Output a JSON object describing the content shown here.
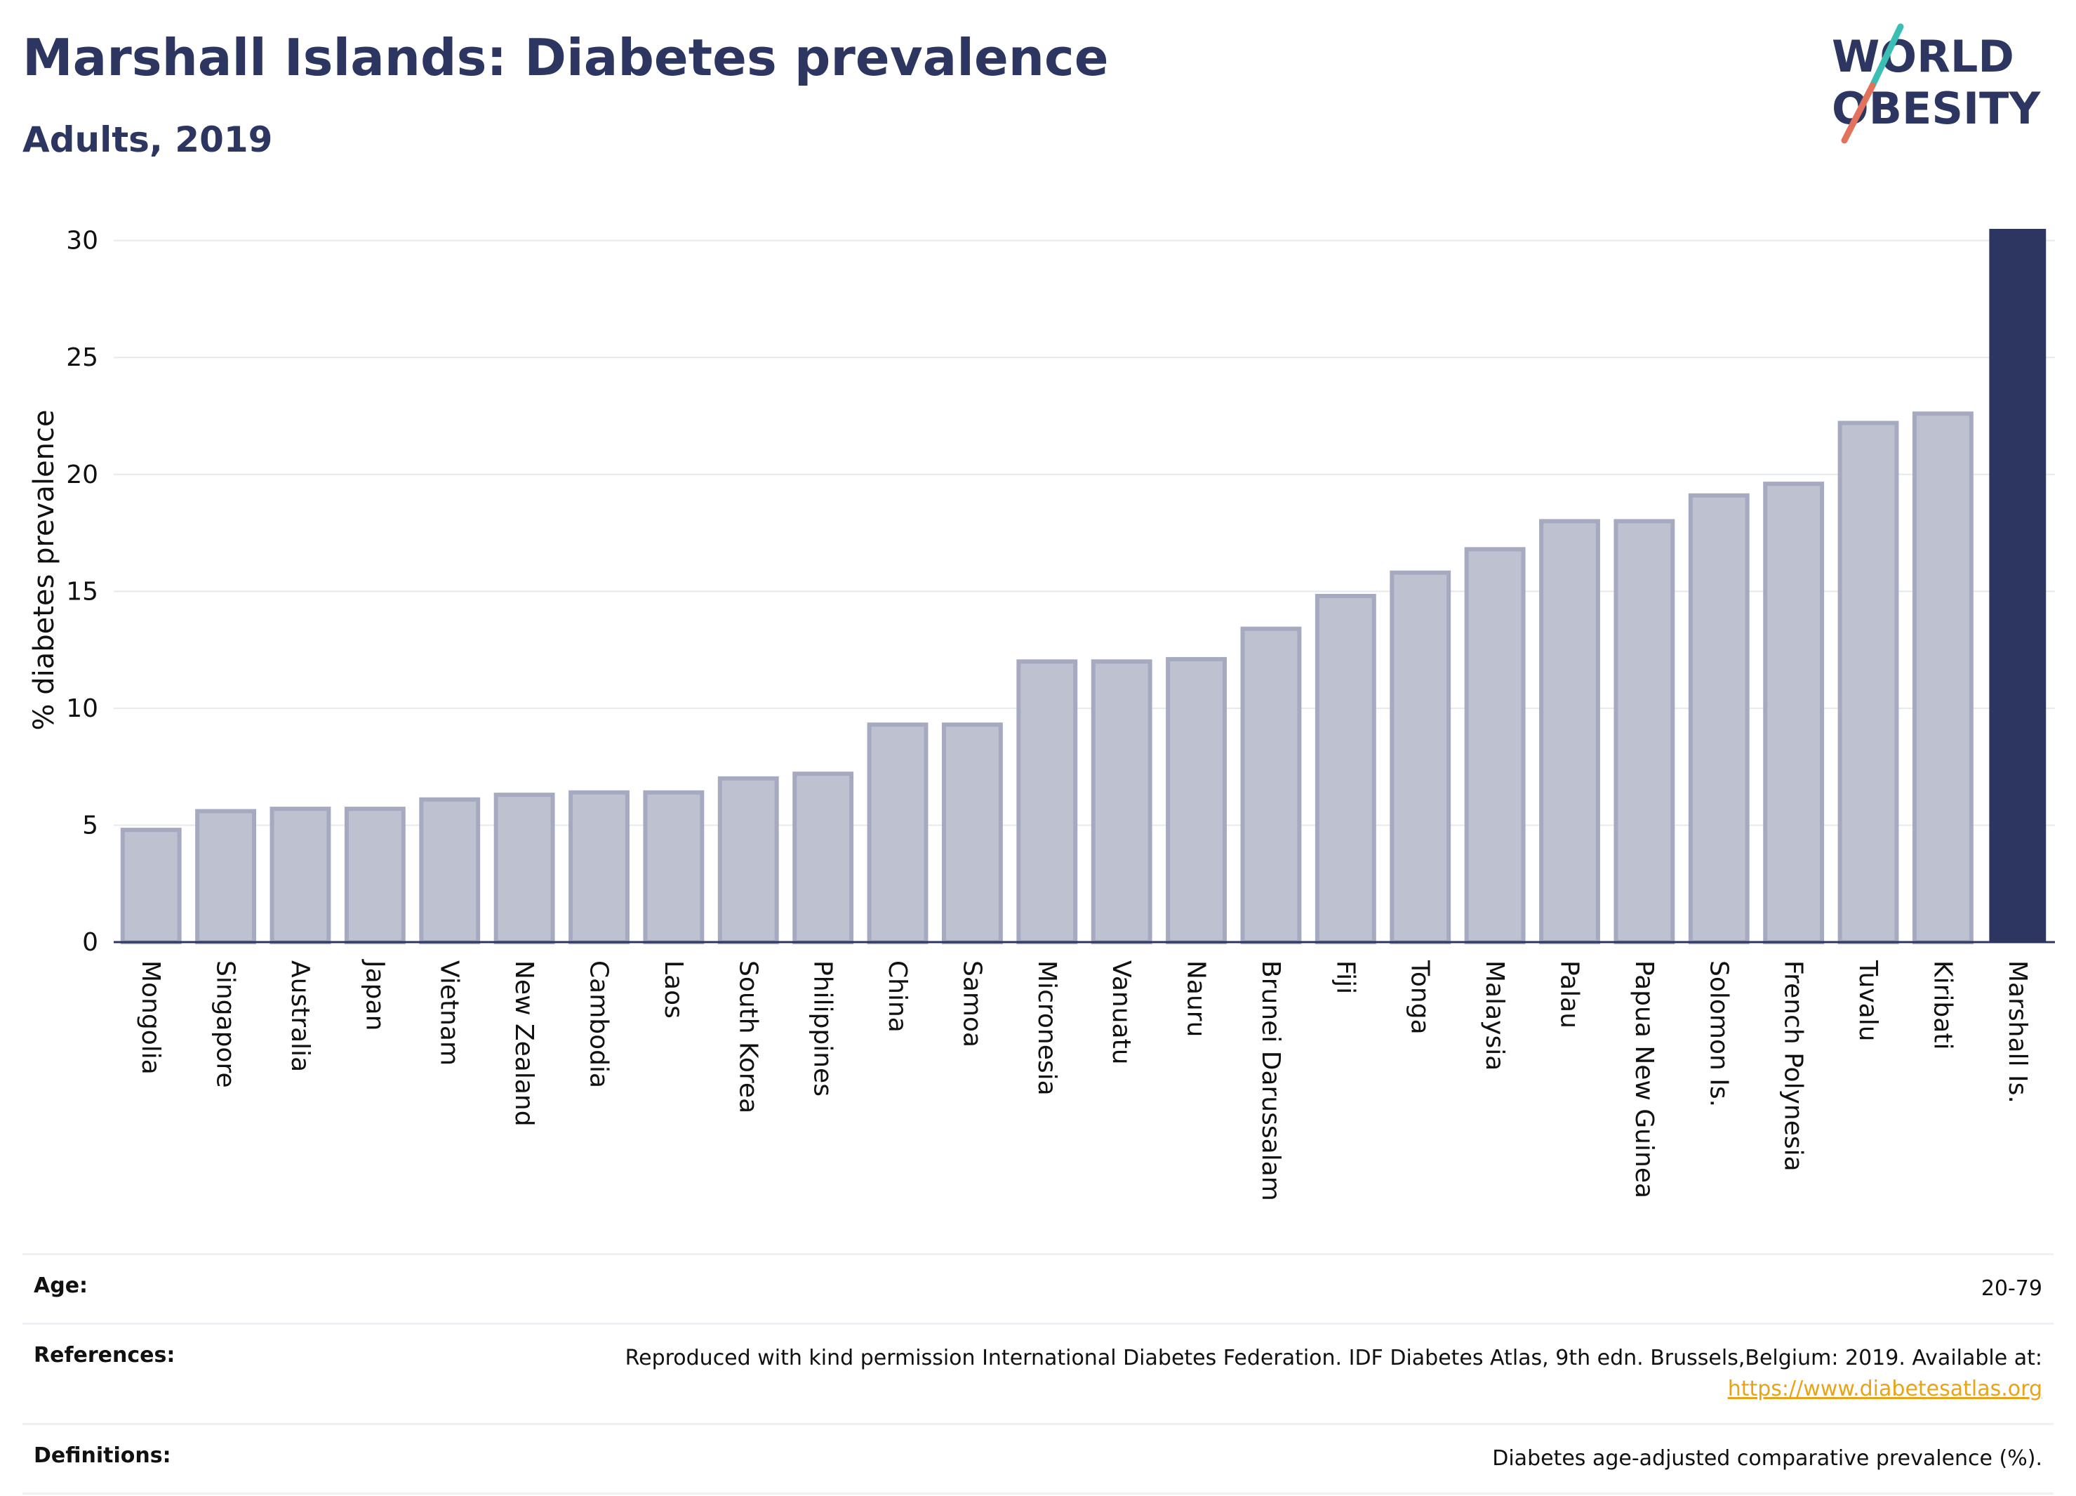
{
  "header": {
    "title": "Marshall Islands: Diabetes prevalence",
    "subtitle": "Adults, 2019"
  },
  "logo": {
    "line1": "WORLD",
    "line2": "OBESITY",
    "accent_teal": "#3bbfb4",
    "accent_coral": "#e2725b"
  },
  "chart_data": {
    "type": "bar",
    "categories": [
      "Mongolia",
      "Singapore",
      "Australia",
      "Japan",
      "Vietnam",
      "New Zealand",
      "Cambodia",
      "Laos",
      "South Korea",
      "Philippines",
      "China",
      "Samoa",
      "Micronesia",
      "Vanuatu",
      "Nauru",
      "Brunei Darussalam",
      "Fiji",
      "Tonga",
      "Malaysia",
      "Palau",
      "Papua New Guinea",
      "Solomon Is.",
      "French Polynesia",
      "Tuvalu",
      "Kiribati",
      "Marshall Is."
    ],
    "values": [
      4.8,
      5.6,
      5.7,
      5.7,
      6.1,
      6.3,
      6.4,
      6.4,
      7.0,
      7.2,
      9.3,
      9.3,
      12.0,
      12.0,
      12.1,
      13.4,
      14.8,
      15.8,
      16.8,
      18.0,
      18.0,
      19.1,
      19.6,
      22.2,
      22.6,
      30.5
    ],
    "highlight": "Marshall Is.",
    "xlabel": "",
    "ylabel": "% diabetes prevalence",
    "ylim": [
      0,
      30.5
    ],
    "yticks": [
      0,
      5,
      10,
      15,
      20,
      25,
      30
    ],
    "grid": true,
    "colors": {
      "bar": "#bec1cf",
      "bar_border": "#a6aac0",
      "highlight": "#2c3660",
      "axis": "#2c3660",
      "grid": "#e6e8ee"
    }
  },
  "info": {
    "age": {
      "label": "Age:",
      "value": "20-79"
    },
    "references": {
      "label": "References:",
      "text": "Reproduced with kind permission International Diabetes Federation. IDF Diabetes Atlas, 9th edn. Brussels,Belgium: 2019. Available at:",
      "link": "https://www.diabetesatlas.org"
    },
    "definitions": {
      "label": "Definitions:",
      "value": "Diabetes age-adjusted comparative prevalence (%)."
    }
  }
}
